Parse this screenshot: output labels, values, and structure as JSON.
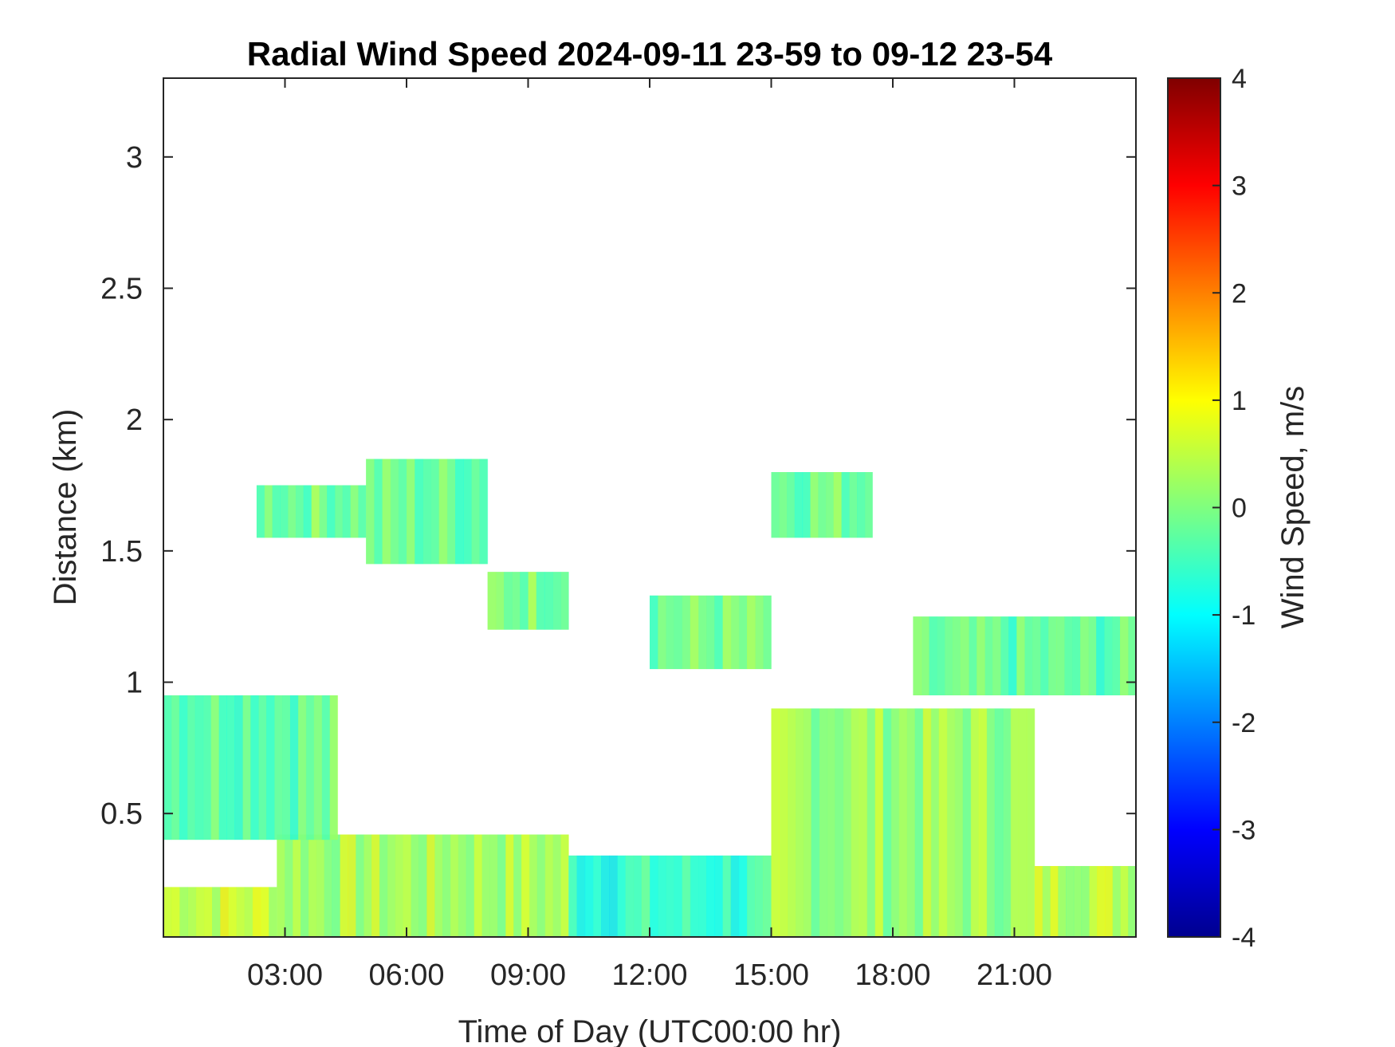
{
  "chart_data": {
    "type": "heatmap",
    "title": "Radial Wind Speed 2024-09-11 23-59 to 09-12 23-54",
    "xlabel": "Time of Day (UTC00:00 hr)",
    "ylabel": "Distance (km)",
    "xlim": [
      0,
      24
    ],
    "ylim": [
      0.03,
      3.3
    ],
    "x_ticks": [
      3,
      6,
      9,
      12,
      15,
      18,
      21
    ],
    "x_tick_labels": [
      "03:00",
      "06:00",
      "09:00",
      "12:00",
      "15:00",
      "18:00",
      "21:00"
    ],
    "y_ticks": [
      0.5,
      1,
      1.5,
      2,
      2.5,
      3
    ],
    "y_tick_labels": [
      "0.5",
      "1",
      "1.5",
      "2",
      "2.5",
      "3"
    ],
    "colorbar": {
      "label": "Wind Speed, m/s",
      "range": [
        -4,
        4
      ],
      "ticks": [
        -4,
        -3,
        -2,
        -1,
        0,
        1,
        2,
        3,
        4
      ],
      "tick_labels": [
        "-4",
        "-3",
        "-2",
        "-1",
        "0",
        "1",
        "2",
        "3",
        "4"
      ],
      "colormap": "jet"
    },
    "regions": [
      {
        "x0": 0.0,
        "x1": 2.8,
        "y0": 0.03,
        "y1": 0.22,
        "mean": 0.6
      },
      {
        "x0": 2.8,
        "x1": 10.0,
        "y0": 0.03,
        "y1": 0.42,
        "mean": 0.3
      },
      {
        "x0": 10.0,
        "x1": 15.0,
        "y0": 0.03,
        "y1": 0.34,
        "mean": -0.6
      },
      {
        "x0": 15.0,
        "x1": 21.5,
        "y0": 0.03,
        "y1": 0.9,
        "mean": 0.2
      },
      {
        "x0": 21.5,
        "x1": 24.0,
        "y0": 0.03,
        "y1": 0.3,
        "mean": 0.5
      },
      {
        "x0": 0.0,
        "x1": 4.3,
        "y0": 0.4,
        "y1": 0.95,
        "mean": -0.2
      },
      {
        "x0": 8.0,
        "x1": 10.0,
        "y0": 1.2,
        "y1": 1.42,
        "mean": 0.0
      },
      {
        "x0": 12.0,
        "x1": 15.0,
        "y0": 1.05,
        "y1": 1.33,
        "mean": -0.1
      },
      {
        "x0": 18.5,
        "x1": 24.0,
        "y0": 0.95,
        "y1": 1.25,
        "mean": -0.3
      },
      {
        "x0": 2.3,
        "x1": 5.0,
        "y0": 1.55,
        "y1": 1.75,
        "mean": -0.1
      },
      {
        "x0": 5.0,
        "x1": 8.0,
        "y0": 1.45,
        "y1": 1.85,
        "mean": -0.2
      },
      {
        "x0": 15.0,
        "x1": 17.5,
        "y0": 1.55,
        "y1": 1.8,
        "mean": -0.1
      }
    ]
  }
}
